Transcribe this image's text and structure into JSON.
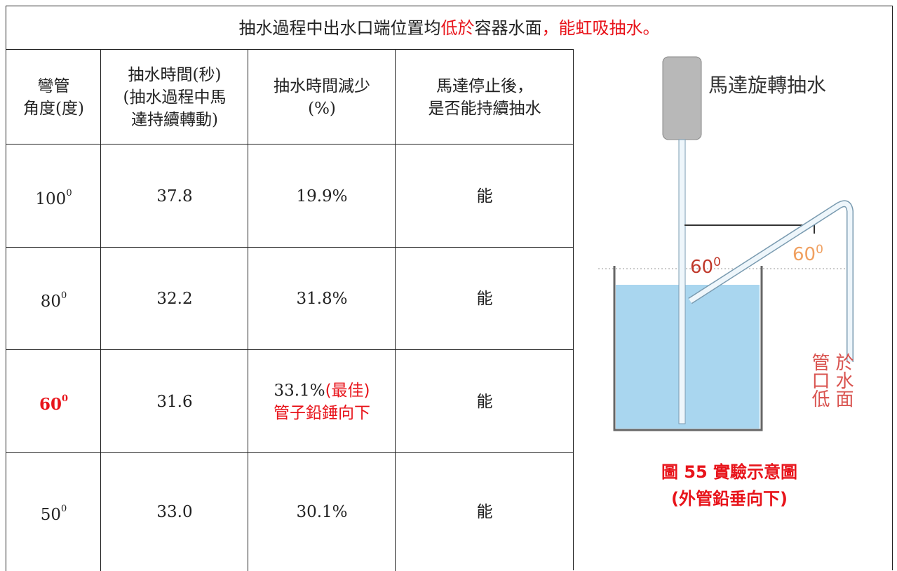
{
  "title": {
    "parts": [
      "抽水過程中出水口端位置均",
      "低於",
      "容器水面",
      "，",
      "能虹吸抽水。"
    ]
  },
  "table": {
    "headers": [
      [
        "彎管",
        "角度(度)"
      ],
      [
        "抽水時間(秒)",
        "(抽水過程中馬",
        "達持續轉動)"
      ],
      [
        "抽水時間減少",
        "(%)"
      ],
      [
        "馬達停止後，",
        "是否能持續抽水"
      ]
    ],
    "rows": [
      {
        "angle": "100",
        "sup": "0",
        "time": "37.8",
        "reduction": "19.9%",
        "siphon": "能"
      },
      {
        "angle": "80",
        "sup": "0",
        "time": "32.2",
        "reduction": "31.8%",
        "siphon": "能"
      },
      {
        "angle": "60",
        "sup": "0",
        "time": "31.6",
        "reduction": "33.1%",
        "reduction_note": "(最佳)",
        "reduction_note2": "管子鉛錘向下",
        "siphon": "能"
      },
      {
        "angle": "50",
        "sup": "0",
        "time": "33.0",
        "reduction": "30.1%",
        "siphon": "能"
      }
    ]
  },
  "figure": {
    "motor_label": "馬達旋轉抽水",
    "angle_inner": "60",
    "angle_outer": "60",
    "angle_sup": "0",
    "outlet_label": [
      "管口低",
      "於水面"
    ],
    "caption": [
      "圖 55 實驗示意圖",
      "(外管鉛垂向下)"
    ]
  }
}
